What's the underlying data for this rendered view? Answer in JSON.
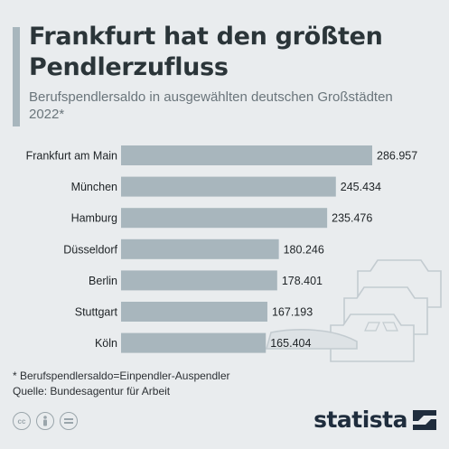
{
  "header": {
    "title": "Frankfurt hat den größten Pendlerzufluss",
    "subtitle": "Berufspendlersaldo in ausgewählten deutschen Großstädten 2022*"
  },
  "chart_data": {
    "type": "bar",
    "orientation": "horizontal",
    "categories": [
      "Frankfurt am Main",
      "München",
      "Hamburg",
      "Düsseldorf",
      "Berlin",
      "Stuttgart",
      "Köln"
    ],
    "values": [
      286957,
      245434,
      235476,
      180246,
      178401,
      167193,
      165404
    ],
    "value_labels": [
      "286.957",
      "245.434",
      "235.476",
      "180.246",
      "178.401",
      "167.193",
      "165.404"
    ],
    "title": "Frankfurt hat den größten Pendlerzufluss",
    "subtitle": "Berufspendlersaldo in ausgewählten deutschen Großstädten 2022*",
    "xlim": [
      0,
      286957
    ],
    "grid": false,
    "legend": "none",
    "bar_color": "#a8b6bd"
  },
  "footer": {
    "note": "* Berufspendlersaldo=Einpendler-Auspendler",
    "source": "Quelle: Bundesagentur für Arbeit",
    "logo": "statista"
  },
  "colors": {
    "background": "#e9ecee",
    "bar": "#a8b6bd",
    "title": "#2b3539",
    "subtitle": "#6a757b"
  },
  "icons": [
    "cc-icon",
    "person-icon",
    "equals-icon",
    "statista-logo-icon",
    "cars-illustration"
  ]
}
